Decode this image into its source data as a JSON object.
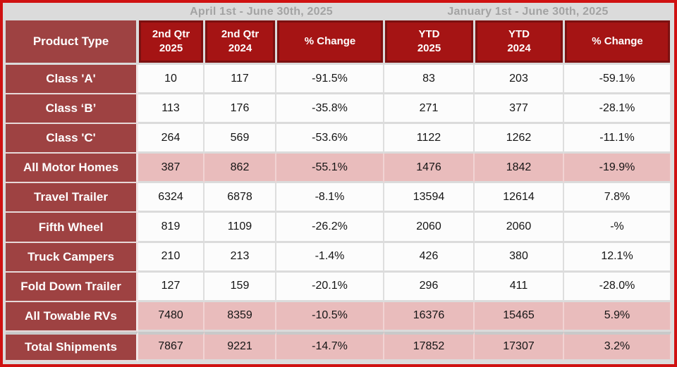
{
  "chart_data": {
    "type": "table",
    "period_groups": [
      {
        "label": "April 1st - June 30th, 2025",
        "columns": [
          "2nd Qtr 2025",
          "2nd Qtr 2024",
          "% Change"
        ]
      },
      {
        "label": "January 1st - June 30th, 2025",
        "columns": [
          "YTD 2025",
          "YTD 2024",
          "% Change"
        ]
      }
    ],
    "columns": [
      {
        "key": "label",
        "line1": "Product Type",
        "line2": ""
      },
      {
        "key": "q2_2025",
        "line1": "2nd Qtr",
        "line2": "2025"
      },
      {
        "key": "q2_2024",
        "line1": "2nd Qtr",
        "line2": "2024"
      },
      {
        "key": "q_change",
        "line1": "% Change",
        "line2": ""
      },
      {
        "key": "ytd_2025",
        "line1": "YTD",
        "line2": "2025"
      },
      {
        "key": "ytd_2024",
        "line1": "YTD",
        "line2": "2024"
      },
      {
        "key": "ytd_change",
        "line1": "% Change",
        "line2": ""
      }
    ],
    "rows": [
      {
        "label": "Class 'A'",
        "q2_2025": "10",
        "q2_2024": "117",
        "q_change": "-91.5%",
        "ytd_2025": "83",
        "ytd_2024": "203",
        "ytd_change": "-59.1%",
        "highlight": false,
        "separator_above": false
      },
      {
        "label": "Class ‘B’",
        "q2_2025": "113",
        "q2_2024": "176",
        "q_change": "-35.8%",
        "ytd_2025": "271",
        "ytd_2024": "377",
        "ytd_change": "-28.1%",
        "highlight": false,
        "separator_above": false
      },
      {
        "label": "Class 'C'",
        "q2_2025": "264",
        "q2_2024": "569",
        "q_change": "-53.6%",
        "ytd_2025": "1122",
        "ytd_2024": "1262",
        "ytd_change": "-11.1%",
        "highlight": false,
        "separator_above": false
      },
      {
        "label": "All Motor Homes",
        "q2_2025": "387",
        "q2_2024": "862",
        "q_change": "-55.1%",
        "ytd_2025": "1476",
        "ytd_2024": "1842",
        "ytd_change": "-19.9%",
        "highlight": true,
        "separator_above": false
      },
      {
        "label": "Travel Trailer",
        "q2_2025": "6324",
        "q2_2024": "6878",
        "q_change": "-8.1%",
        "ytd_2025": "13594",
        "ytd_2024": "12614",
        "ytd_change": "7.8%",
        "highlight": false,
        "separator_above": false
      },
      {
        "label": "Fifth Wheel",
        "q2_2025": "819",
        "q2_2024": "1109",
        "q_change": "-26.2%",
        "ytd_2025": "2060",
        "ytd_2024": "2060",
        "ytd_change": "-%",
        "highlight": false,
        "separator_above": false
      },
      {
        "label": "Truck Campers",
        "q2_2025": "210",
        "q2_2024": "213",
        "q_change": "-1.4%",
        "ytd_2025": "426",
        "ytd_2024": "380",
        "ytd_change": "12.1%",
        "highlight": false,
        "separator_above": false
      },
      {
        "label": "Fold Down Trailer",
        "q2_2025": "127",
        "q2_2024": "159",
        "q_change": "-20.1%",
        "ytd_2025": "296",
        "ytd_2024": "411",
        "ytd_change": "-28.0%",
        "highlight": false,
        "separator_above": false
      },
      {
        "label": "All Towable RVs",
        "q2_2025": "7480",
        "q2_2024": "8359",
        "q_change": "-10.5%",
        "ytd_2025": "16376",
        "ytd_2024": "15465",
        "ytd_change": "5.9%",
        "highlight": true,
        "separator_above": false
      },
      {
        "label": "Total Shipments",
        "q2_2025": "7867",
        "q2_2024": "9221",
        "q_change": "-14.7%",
        "ytd_2025": "17852",
        "ytd_2024": "17307",
        "ytd_change": "3.2%",
        "highlight": true,
        "separator_above": true
      }
    ]
  },
  "colors": {
    "outer_border": "#cf1111",
    "background": "#dbdbdb",
    "header_red": "#a51414",
    "header_red_dark": "#7c1010",
    "label_bg": "#9e4242",
    "highlight": "#e9bcbc",
    "period_text": "#a3a3a3"
  }
}
